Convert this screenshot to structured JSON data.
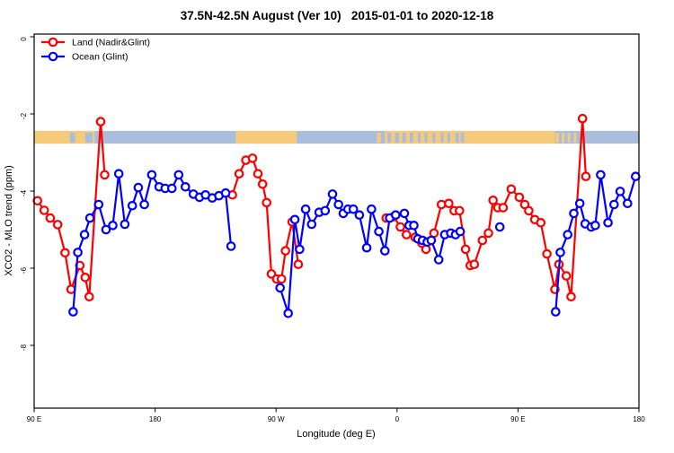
{
  "title": "37.5N-42.5N August (Ver 10)   2015-01-01 to 2020-12-18",
  "legend": {
    "items": [
      {
        "label": "Land (Nadir&Glint)",
        "color": "#ff0000"
      },
      {
        "label": "Ocean (Glint)",
        "color": "#0000ff"
      }
    ]
  },
  "x_axis": {
    "label": "Longitude (deg E)",
    "ticks": [
      {
        "pos": 0,
        "label": "90 E"
      },
      {
        "pos": 90,
        "label": "180"
      },
      {
        "pos": 180,
        "label": "90 W"
      },
      {
        "pos": 270,
        "label": "0"
      },
      {
        "pos": 360,
        "label": "90 E"
      },
      {
        "pos": 450,
        "label": "180"
      }
    ]
  },
  "y_axis": {
    "label": "XCO2 - MLO trend (ppm)",
    "ticks": [
      {
        "value": 0,
        "label": "0"
      },
      {
        "value": -2,
        "label": "-2"
      },
      {
        "value": -4,
        "label": "-4"
      },
      {
        "value": -6,
        "label": "-6"
      },
      {
        "value": -8,
        "label": "-8"
      }
    ]
  },
  "chart_data": {
    "type": "line",
    "title": "37.5N-42.5N August (Ver 10)   2015-01-01 to 2020-12-18",
    "xlabel": "Longitude (deg E)",
    "ylabel": "XCO2 - MLO trend (ppm)",
    "x_axis_wrap_note": "x axis spans 450 deg of longitude eastward: 90E -> 180 -> 90W -> 0 -> 90E -> 180; point x values below are degrees east of the left edge (90E)",
    "x_span_deg": [
      0,
      450
    ],
    "ylim": [
      -9.7,
      0.1
    ],
    "grid": false,
    "legend_position": "top-left",
    "marker": "open-circle",
    "gap_break_deg": 10,
    "series": [
      {
        "name": "Land (Nadir&Glint)",
        "color": "#ff0000",
        "points": [
          [
            2.5,
            -4.25
          ],
          [
            7.5,
            -4.5
          ],
          [
            12,
            -4.7
          ],
          [
            17.5,
            -4.87
          ],
          [
            23,
            -5.6
          ],
          [
            27.5,
            -6.55
          ],
          [
            34,
            -5.93
          ],
          [
            38,
            -6.24
          ],
          [
            41,
            -6.74
          ],
          [
            49.5,
            -2.2
          ],
          [
            52.5,
            -3.58
          ],
          [
            147.5,
            -4.1
          ],
          [
            152.5,
            -3.55
          ],
          [
            157.5,
            -3.2
          ],
          [
            162.5,
            -3.15
          ],
          [
            166.5,
            -3.55
          ],
          [
            170,
            -3.82
          ],
          [
            173,
            -4.3
          ],
          [
            176.5,
            -6.15
          ],
          [
            180.5,
            -6.28
          ],
          [
            184,
            -6.28
          ],
          [
            187,
            -5.55
          ],
          [
            192,
            -4.8
          ],
          [
            196.5,
            -5.9
          ],
          [
            262,
            -4.7
          ],
          [
            267.5,
            -4.66
          ],
          [
            272.5,
            -4.93
          ],
          [
            277,
            -5.13
          ],
          [
            283.5,
            -5.2
          ],
          [
            288.5,
            -5.35
          ],
          [
            291.5,
            -5.51
          ],
          [
            297.5,
            -5.09
          ],
          [
            303,
            -4.35
          ],
          [
            308.5,
            -4.32
          ],
          [
            312.5,
            -4.51
          ],
          [
            316.5,
            -4.51
          ],
          [
            321,
            -5.51
          ],
          [
            324.5,
            -5.93
          ],
          [
            327.5,
            -5.9
          ],
          [
            333.5,
            -5.28
          ],
          [
            338,
            -5.09
          ],
          [
            341.5,
            -4.24
          ],
          [
            345,
            -4.43
          ],
          [
            349,
            -4.43
          ],
          [
            355,
            -3.95
          ],
          [
            361,
            -4.16
          ],
          [
            365,
            -4.35
          ],
          [
            368,
            -4.51
          ],
          [
            372.5,
            -4.74
          ],
          [
            377,
            -4.82
          ],
          [
            381.5,
            -5.63
          ],
          [
            387.5,
            -6.55
          ],
          [
            390.5,
            -5.9
          ],
          [
            396,
            -6.2
          ],
          [
            399.5,
            -6.74
          ],
          [
            408,
            -2.12
          ],
          [
            410.5,
            -3.62
          ]
        ]
      },
      {
        "name": "Ocean (Glint)",
        "color": "#0000ff",
        "points": [
          [
            29,
            -7.13
          ],
          [
            32.5,
            -5.59
          ],
          [
            37.5,
            -5.13
          ],
          [
            41.5,
            -4.7
          ],
          [
            48,
            -4.35
          ],
          [
            53.5,
            -5.0
          ],
          [
            58.5,
            -4.89
          ],
          [
            63,
            -3.55
          ],
          [
            67.5,
            -4.86
          ],
          [
            73,
            -4.38
          ],
          [
            77.5,
            -3.91
          ],
          [
            82,
            -4.35
          ],
          [
            87.5,
            -3.58
          ],
          [
            93,
            -3.89
          ],
          [
            97.5,
            -3.93
          ],
          [
            102.5,
            -3.93
          ],
          [
            107.5,
            -3.58
          ],
          [
            112.5,
            -3.89
          ],
          [
            118.5,
            -4.08
          ],
          [
            123,
            -4.16
          ],
          [
            127.5,
            -4.1
          ],
          [
            132.5,
            -4.18
          ],
          [
            137.5,
            -4.12
          ],
          [
            142.5,
            -4.05
          ],
          [
            146.5,
            -5.43
          ],
          [
            183,
            -6.51
          ],
          [
            189,
            -7.17
          ],
          [
            194,
            -4.74
          ],
          [
            197.5,
            -5.51
          ],
          [
            202,
            -4.47
          ],
          [
            206.5,
            -4.86
          ],
          [
            212,
            -4.55
          ],
          [
            216.5,
            -4.51
          ],
          [
            222,
            -4.08
          ],
          [
            226.5,
            -4.35
          ],
          [
            230,
            -4.58
          ],
          [
            233.5,
            -4.47
          ],
          [
            237.5,
            -4.47
          ],
          [
            242,
            -4.62
          ],
          [
            247.5,
            -5.47
          ],
          [
            251,
            -4.47
          ],
          [
            256.5,
            -5.05
          ],
          [
            261,
            -5.55
          ],
          [
            264.5,
            -4.7
          ],
          [
            269,
            -4.62
          ],
          [
            275.5,
            -4.58
          ],
          [
            279,
            -4.89
          ],
          [
            282.5,
            -4.89
          ],
          [
            285.5,
            -5.24
          ],
          [
            289,
            -5.28
          ],
          [
            292.5,
            -5.32
          ],
          [
            295.5,
            -5.28
          ],
          [
            301,
            -5.78
          ],
          [
            305.5,
            -5.13
          ],
          [
            310,
            -5.09
          ],
          [
            313.5,
            -5.13
          ],
          [
            317,
            -5.05
          ],
          [
            346.5,
            -4.93
          ],
          [
            388,
            -7.13
          ],
          [
            391.5,
            -5.59
          ],
          [
            397,
            -5.13
          ],
          [
            401.5,
            -4.58
          ],
          [
            406,
            -4.32
          ],
          [
            410,
            -4.85
          ],
          [
            414.5,
            -4.93
          ],
          [
            417.5,
            -4.89
          ],
          [
            421.5,
            -3.58
          ],
          [
            427,
            -4.82
          ],
          [
            431.5,
            -4.35
          ],
          [
            436,
            -4.01
          ],
          [
            441.5,
            -4.32
          ],
          [
            447.5,
            -3.62
          ]
        ]
      }
    ],
    "map_strip": {
      "description": "land/ocean longitude mask band drawn across the plot near -2.6 ppm",
      "value_range_ppm": [
        -2.44,
        -2.77
      ],
      "ocean_color": "#a9bedb",
      "land_color": "#f6ca7b",
      "land_segments_deg": [
        [
          0,
          45
        ],
        [
          150,
          195.5
        ],
        [
          261,
          387.5
        ]
      ],
      "ocean_patches_deg": [
        [
          26.5,
          30.5
        ],
        [
          38,
          43.5
        ],
        [
          263,
          265.5
        ],
        [
          268.5,
          271.5
        ],
        [
          274,
          276.5
        ],
        [
          279.5,
          282
        ],
        [
          285.5,
          287.5
        ],
        [
          290.5,
          292.5
        ],
        [
          296.5,
          298.5
        ],
        [
          302.5,
          304.5
        ],
        [
          307.5,
          309.5
        ],
        [
          313.5,
          316
        ],
        [
          317.5,
          320
        ]
      ],
      "land_patches_deg": [
        [
          255,
          258
        ],
        [
          388,
          390.5
        ],
        [
          392.5,
          394.5
        ],
        [
          397,
          399
        ],
        [
          401.5,
          403.5
        ]
      ]
    },
    "frame_color": "#000000",
    "background_color": "#ffffff"
  }
}
